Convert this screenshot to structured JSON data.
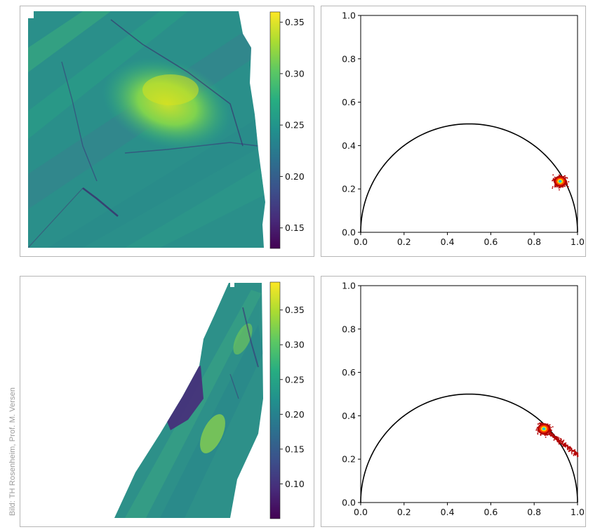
{
  "credit": "Bild: TH Rosenheim, Prof. M. Versen",
  "colors": {
    "viridis": [
      "#440154",
      "#472c7a",
      "#3b518b",
      "#2c718e",
      "#21908d",
      "#27ad81",
      "#5cc863",
      "#aadc32",
      "#fde725"
    ],
    "curve": "#000000",
    "scatter_outer": "#b30000",
    "scatter_mid": "#ff3b00",
    "scatter_core": "#ffd400",
    "scatter_center": "#00c8ff"
  },
  "chart_data": [
    {
      "type": "heatmap",
      "colormap": "viridis",
      "colorbar": {
        "min": 0.13,
        "max": 0.36,
        "ticks": [
          0.35,
          0.3,
          0.25,
          0.2,
          0.15
        ],
        "tick_labels": [
          "0.35",
          "0.30",
          "0.25",
          "0.20",
          "0.15"
        ]
      }
    },
    {
      "type": "scatter",
      "xlim": [
        0.0,
        1.0
      ],
      "ylim": [
        0.0,
        1.0
      ],
      "xticks": [
        "0.0",
        "0.2",
        "0.4",
        "0.6",
        "0.8",
        "1.0"
      ],
      "yticks": [
        "0.0",
        "0.2",
        "0.4",
        "0.6",
        "0.8",
        "1.0"
      ],
      "curve": "semicircle centered (0.5, 0) radius 0.5",
      "cluster": {
        "center_x": 0.92,
        "center_y": 0.235
      }
    },
    {
      "type": "heatmap",
      "colormap": "viridis",
      "colorbar": {
        "min": 0.05,
        "max": 0.39,
        "ticks": [
          0.35,
          0.3,
          0.25,
          0.2,
          0.15,
          0.1
        ],
        "tick_labels": [
          "0.35",
          "0.30",
          "0.25",
          "0.20",
          "0.15",
          "0.10"
        ]
      }
    },
    {
      "type": "scatter",
      "xlim": [
        0.0,
        1.0
      ],
      "ylim": [
        0.0,
        1.0
      ],
      "xticks": [
        "0.0",
        "0.2",
        "0.4",
        "0.6",
        "0.8",
        "1.0"
      ],
      "yticks": [
        "0.0",
        "0.2",
        "0.4",
        "0.6",
        "0.8",
        "1.0"
      ],
      "curve": "semicircle centered (0.5, 0) radius 0.5",
      "cluster": {
        "center_x": 0.845,
        "center_y": 0.34,
        "tail_to_x": 1.0,
        "tail_to_y": 0.22
      }
    }
  ]
}
